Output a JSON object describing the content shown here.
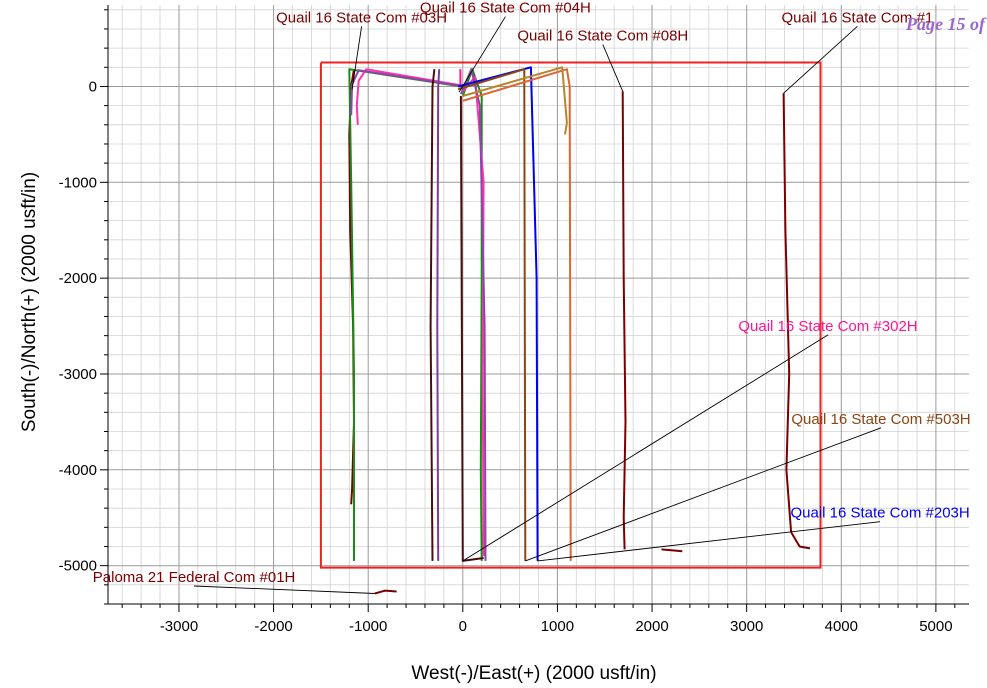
{
  "page_label": "Page 15 of",
  "chart_data": {
    "type": "line",
    "title": "",
    "xlabel": "West(-)/East(+) (2000 usft/in)",
    "ylabel": "South(-)/North(+) (2000 usft/in)",
    "xlim": [
      -3750,
      5350
    ],
    "ylim": [
      -5400,
      850
    ],
    "xticks": [
      -3000,
      -2000,
      -1000,
      0,
      1000,
      2000,
      3000,
      4000,
      5000
    ],
    "yticks": [
      0,
      -1000,
      -2000,
      -3000,
      -4000,
      -5000
    ],
    "xtick_labels": [
      "-3000",
      "-2000",
      "-1000",
      "0",
      "1000",
      "2000",
      "3000",
      "4000",
      "5000"
    ],
    "ytick_labels": [
      "0",
      "-1000",
      "-2000",
      "-3000",
      "-4000",
      "-5000"
    ],
    "grid": true,
    "boundary": {
      "color": "#ee2222",
      "x": [
        -1500,
        3780,
        3780,
        -1500,
        -1500
      ],
      "y": [
        250,
        250,
        -5020,
        -5020,
        250
      ]
    },
    "series": [
      {
        "name": "",
        "color": "#7a0000",
        "x": [
          -1150,
          -1180,
          -1200,
          -1190,
          -1160,
          -1150,
          -1170,
          -1180
        ],
        "y": [
          180,
          0,
          -500,
          -1500,
          -2500,
          -3500,
          -4200,
          -4360
        ]
      },
      {
        "name": "",
        "color": "#1a8a1a",
        "x": [
          -10,
          -1200,
          -1180,
          -1150,
          -1150
        ],
        "y": [
          0,
          180,
          -1000,
          -3000,
          -4950
        ]
      },
      {
        "name": "",
        "color": "#ff33aa",
        "x": [
          -10,
          -1020,
          -1100,
          -1120,
          -1110
        ],
        "y": [
          10,
          180,
          60,
          -200,
          -400
        ]
      },
      {
        "name": "",
        "color": "#8e44ad",
        "x": [
          -10,
          -1100,
          -1170,
          -1180
        ],
        "y": [
          5,
          170,
          20,
          -300
        ]
      },
      {
        "name": "",
        "color": "#4a0d0d",
        "x": [
          -300,
          -320,
          -340,
          -320
        ],
        "y": [
          180,
          0,
          -2500,
          -4950
        ]
      },
      {
        "name": "",
        "color": "#7d3c98",
        "x": [
          -250,
          -260,
          -270,
          -260
        ],
        "y": [
          180,
          0,
          -2500,
          -4950
        ]
      },
      {
        "name": "",
        "color": "#ff1493",
        "x": [
          -25,
          -25
        ],
        "y": [
          180,
          10
        ]
      },
      {
        "name": "",
        "color": "#1a8a1a",
        "x": [
          0,
          100,
          200,
          200,
          190,
          200
        ],
        "y": [
          -100,
          180,
          -100,
          -2000,
          -4000,
          -4950
        ]
      },
      {
        "name": "",
        "color": "#ff33aa",
        "x": [
          0,
          130,
          220,
          210,
          220
        ],
        "y": [
          -50,
          100,
          -1000,
          -3000,
          -4900
        ]
      },
      {
        "name": "",
        "color": "#8e44ad",
        "x": [
          -20,
          90,
          180,
          230,
          240
        ],
        "y": [
          -80,
          180,
          -200,
          -2500,
          -4950
        ]
      },
      {
        "name": "",
        "color": "#4a0d0d",
        "x": [
          -20,
          0,
          220
        ],
        "y": [
          -100,
          -4950,
          -4920
        ]
      },
      {
        "name": "",
        "color": "#0000ee",
        "x": [
          -50,
          720,
          780,
          790
        ],
        "y": [
          0,
          200,
          -2000,
          -4950
        ]
      },
      {
        "name": "",
        "color": "#8b4513",
        "x": [
          -50,
          650,
          650,
          660
        ],
        "y": [
          -30,
          180,
          0,
          -4950
        ]
      },
      {
        "name": "",
        "color": "#dd6633",
        "x": [
          0,
          1100,
          1130,
          1140
        ],
        "y": [
          -150,
          180,
          0,
          -4950
        ]
      },
      {
        "name": "",
        "color": "#b8862a",
        "x": [
          0,
          1050,
          1100,
          1080
        ],
        "y": [
          -100,
          200,
          -380,
          -500
        ]
      },
      {
        "name": "",
        "color": "#7a0000",
        "x": [
          1690,
          1700,
          1720,
          1700,
          1710
        ],
        "y": [
          -50,
          -2000,
          -3500,
          -4500,
          -4830
        ]
      },
      {
        "name": "",
        "color": "#7a0000",
        "x": [
          3390,
          3410,
          3450,
          3420,
          3470,
          3560,
          3670
        ],
        "y": [
          -70,
          -1500,
          -3000,
          -4000,
          -4650,
          -4800,
          -4820
        ]
      },
      {
        "name": "",
        "color": "#7a0000",
        "x": [
          2100,
          2320
        ],
        "y": [
          -4830,
          -4850
        ]
      },
      {
        "name": "",
        "color": "#7a0000",
        "x": [
          -930,
          -820,
          -700
        ],
        "y": [
          -5290,
          -5260,
          -5270
        ]
      }
    ],
    "annotations": [
      {
        "text": "Quail 16 State Com #03H",
        "color": "#7a0000",
        "x": -1070,
        "y": 670,
        "anchor_x": -1170,
        "anchor_y": -30
      },
      {
        "text": "Quail 16 State Com #04H",
        "color": "#7a0000",
        "x": 450,
        "y": 770,
        "anchor_x": -40,
        "anchor_y": -60
      },
      {
        "text": "Quail 16 State Com #08H",
        "color": "#7a0000",
        "x": 1480,
        "y": 480,
        "anchor_x": 1690,
        "anchor_y": -50
      },
      {
        "text": "Quail 16 State Com #1",
        "color": "#7a0000",
        "x": 4170,
        "y": 670,
        "anchor_x": 3390,
        "anchor_y": -70
      },
      {
        "text": "Quail 16 State Com #302H",
        "color": "#ff1493",
        "x": 3860,
        "y": -2550,
        "anchor_x": 0,
        "anchor_y": -4950
      },
      {
        "text": "Quail 16 State Com #503H",
        "color": "#8b4513",
        "x": 4420,
        "y": -3520,
        "anchor_x": 660,
        "anchor_y": -4950
      },
      {
        "text": "Quail 16 State Com #203H",
        "color": "#0000ee",
        "x": 4410,
        "y": -4500,
        "anchor_x": 790,
        "anchor_y": -4950
      },
      {
        "text": "Paloma 21 Federal Com #01H",
        "color": "#7a0000",
        "x": -2840,
        "y": -5170,
        "anchor_x": -930,
        "anchor_y": -5290
      }
    ]
  }
}
